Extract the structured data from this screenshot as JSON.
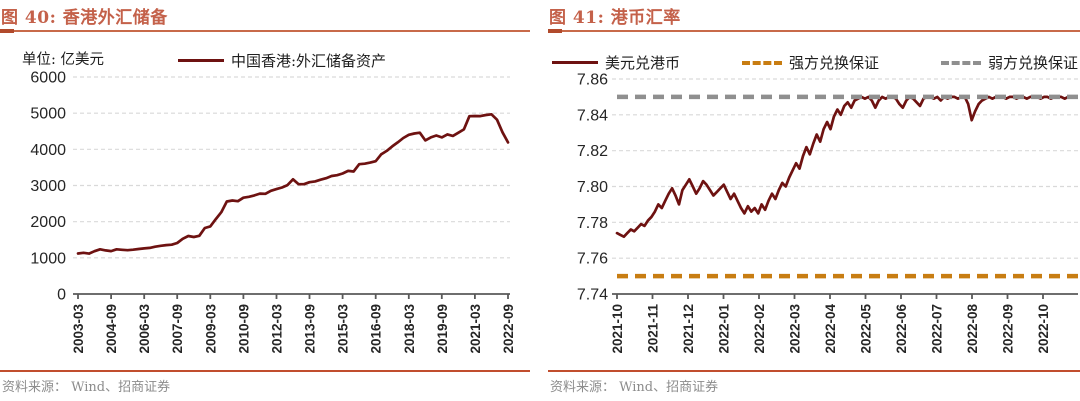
{
  "colors": {
    "accent_title": "#c4614a",
    "accent_rule": "#c14e2e",
    "series_maroon": "#6e1211",
    "strong_side_orange": "#c87d12",
    "weak_side_gray": "#8f8f8f",
    "gridline": "#d9d9d9",
    "axis": "#595959",
    "tick_text": "#262626",
    "footer_text": "#8c8c8c"
  },
  "footer": {
    "text": "资料来源： Wind、招商证券"
  },
  "chart_data": [
    {
      "type": "line",
      "title": "图 40:  香港外汇储备",
      "unit": "单位:  亿美元",
      "legend_position": "top-center",
      "grid": "horizontal-dashed",
      "ylim": [
        0,
        6000
      ],
      "y_ticks": [
        0,
        1000,
        2000,
        3000,
        4000,
        5000,
        6000
      ],
      "y_tick_labels": [
        "0",
        "1000",
        "2000",
        "3000",
        "4000",
        "5000",
        "6000"
      ],
      "x_tick_labels": [
        "2003-03",
        "2004-09",
        "2006-03",
        "2007-09",
        "2009-03",
        "2010-09",
        "2012-03",
        "2013-09",
        "2015-03",
        "2016-09",
        "2018-03",
        "2019-09",
        "2021-03",
        "2022-09"
      ],
      "x_range_note": "quarterly observations 2003-03 to 2022-09",
      "series": [
        {
          "name": "中国香港:外汇储备资产",
          "style": "solid",
          "color": "#6e1211",
          "values": [
            1121,
            1139,
            1118,
            1184,
            1237,
            1206,
            1186,
            1235,
            1221,
            1212,
            1224,
            1243,
            1261,
            1275,
            1308,
            1332,
            1352,
            1363,
            1410,
            1527,
            1604,
            1575,
            1610,
            1825,
            1868,
            2071,
            2263,
            2558,
            2586,
            2566,
            2662,
            2687,
            2726,
            2776,
            2771,
            2854,
            2900,
            2944,
            3011,
            3172,
            3038,
            3037,
            3092,
            3112,
            3161,
            3203,
            3264,
            3285,
            3332,
            3404,
            3388,
            3588,
            3602,
            3632,
            3672,
            3862,
            3958,
            4082,
            4193,
            4314,
            4403,
            4439,
            4459,
            4247,
            4330,
            4382,
            4329,
            4413,
            4371,
            4459,
            4551,
            4916,
            4923,
            4918,
            4950,
            4969,
            4819,
            4472,
            4192
          ]
        }
      ]
    },
    {
      "type": "line",
      "title": "图 41:  港币汇率",
      "legend_position": "top-spread",
      "grid": "horizontal-dashed",
      "ylim": [
        7.74,
        7.86
      ],
      "y_ticks": [
        7.74,
        7.76,
        7.78,
        7.8,
        7.82,
        7.84,
        7.86
      ],
      "y_tick_labels": [
        "7.74",
        "7.76",
        "7.78",
        "7.80",
        "7.82",
        "7.84",
        "7.86"
      ],
      "x_tick_labels": [
        "2021-10",
        "2021-11",
        "2021-12",
        "2022-01",
        "2022-02",
        "2022-03",
        "2022-04",
        "2022-05",
        "2022-06",
        "2022-07",
        "2022-08",
        "2022-09",
        "2022-10"
      ],
      "x_range_note": "daily observations 2021-10 to 2022-10",
      "series": [
        {
          "name": "美元兑港币",
          "style": "solid",
          "color": "#6e1211",
          "values": [
            7.774,
            7.773,
            7.772,
            7.774,
            7.776,
            7.775,
            7.777,
            7.779,
            7.778,
            7.781,
            7.783,
            7.786,
            7.79,
            7.788,
            7.792,
            7.796,
            7.799,
            7.795,
            7.79,
            7.798,
            7.801,
            7.804,
            7.8,
            7.796,
            7.799,
            7.803,
            7.801,
            7.798,
            7.795,
            7.797,
            7.799,
            7.801,
            7.797,
            7.793,
            7.796,
            7.792,
            7.788,
            7.785,
            7.789,
            7.786,
            7.788,
            7.785,
            7.79,
            7.787,
            7.792,
            7.796,
            7.793,
            7.798,
            7.802,
            7.8,
            7.805,
            7.809,
            7.813,
            7.81,
            7.817,
            7.822,
            7.818,
            7.824,
            7.829,
            7.825,
            7.832,
            7.836,
            7.832,
            7.839,
            7.843,
            7.84,
            7.845,
            7.847,
            7.844,
            7.848,
            7.849,
            7.85,
            7.849,
            7.85,
            7.848,
            7.844,
            7.848,
            7.85,
            7.849,
            7.85,
            7.85,
            7.849,
            7.846,
            7.844,
            7.848,
            7.85,
            7.849,
            7.847,
            7.845,
            7.849,
            7.85,
            7.85,
            7.849,
            7.85,
            7.848,
            7.85,
            7.849,
            7.85,
            7.85,
            7.849,
            7.85,
            7.85,
            7.846,
            7.837,
            7.842,
            7.846,
            7.848,
            7.849,
            7.85,
            7.849,
            7.85,
            7.85,
            7.85,
            7.849,
            7.85,
            7.85,
            7.849,
            7.85,
            7.85,
            7.849,
            7.85,
            7.85,
            7.85,
            7.849,
            7.85,
            7.85,
            7.849,
            7.85,
            7.85,
            7.85,
            7.849,
            7.85,
            7.85,
            7.85
          ]
        },
        {
          "name": "强方兑换保证",
          "style": "dashed",
          "color": "#c87d12",
          "value": 7.75
        },
        {
          "name": "弱方兑换保证",
          "style": "dashed",
          "color": "#8f8f8f",
          "value": 7.85
        }
      ]
    }
  ]
}
